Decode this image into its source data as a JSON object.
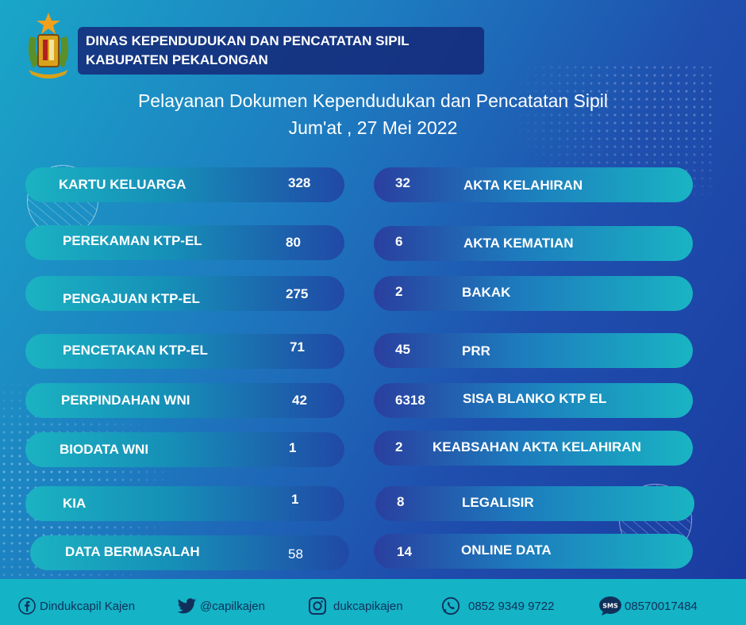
{
  "header": {
    "line1": "DINAS KEPENDUDUKAN DAN PENCATATAN SIPIL",
    "line2": "KABUPATEN PEKALONGAN"
  },
  "title": {
    "line1": "Pelayanan Dokumen Kependudukan dan Pencatatan Sipil",
    "line2": "Jum'at ,  27 Mei 2022"
  },
  "left": [
    {
      "label": "KARTU KELUARGA",
      "value": "328"
    },
    {
      "label": "PEREKAMAN KTP-EL",
      "value": "80"
    },
    {
      "label": "PENGAJUAN KTP-EL",
      "value": "275"
    },
    {
      "label": "PENCETAKAN KTP-EL",
      "value": "71"
    },
    {
      "label": "PERPINDAHAN WNI",
      "value": "42"
    },
    {
      "label": "BIODATA WNI",
      "value": "1"
    },
    {
      "label": "KIA",
      "value": "1"
    },
    {
      "label": "DATA BERMASALAH",
      "value": "58"
    }
  ],
  "right": [
    {
      "label": "AKTA KELAHIRAN",
      "value": "32"
    },
    {
      "label": "AKTA KEMATIAN",
      "value": "6"
    },
    {
      "label": "BAKAK",
      "value": "2"
    },
    {
      "label": "PRR",
      "value": "45"
    },
    {
      "label": "SISA BLANKO KTP EL",
      "value": "6318"
    },
    {
      "label": "KEABSAHAN AKTA KELAHIRAN",
      "value": "2"
    },
    {
      "label": "LEGALISIR",
      "value": "8"
    },
    {
      "label": "ONLINE DATA",
      "value": "14"
    }
  ],
  "footer": {
    "facebook": "Dindukcapil Kajen",
    "twitter": "@capilkajen",
    "instagram": "dukcapikajen",
    "whatsapp": "0852 9349 9722",
    "sms": "08570017484",
    "sms_badge": "SMS"
  },
  "colors": {
    "footer_bg": "#14b3c6",
    "header_box": "#142878",
    "pill_teal": "#1bb2c2",
    "pill_blue": "#2049a6"
  }
}
